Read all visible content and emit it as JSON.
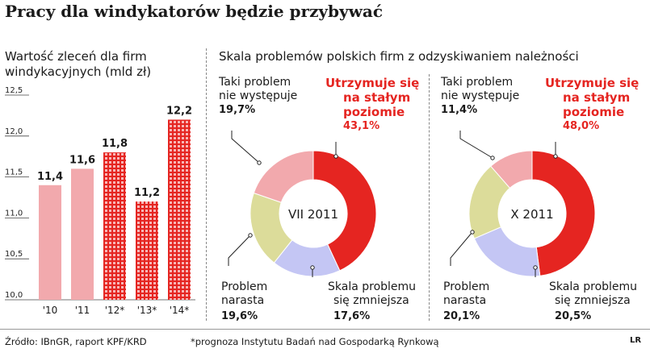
{
  "title": "Pracy dla windykatorów będzie przybywać",
  "bar_panel": {
    "subtitle_line1": "Wartość zleceń dla firm",
    "subtitle_line2": "windykacyjnych (mld zł)"
  },
  "pie_panel": {
    "subtitle": "Skala problemów polskich firm z odzyskiwaniem należności"
  },
  "labels": {
    "no_problem_1": "Taki problem",
    "no_problem_2": "nie występuje",
    "constant_1": "Utrzymuje się",
    "constant_2": "na stałym",
    "constant_3": "poziomie",
    "growing_1": "Problem",
    "growing_2": "narasta",
    "decreasing_1": "Skala problemu",
    "decreasing_2": "się zmniejsza"
  },
  "footer": {
    "source": "Źródło: IBnGR, raport KPF/KRD",
    "note": "*prognoza Instytutu Badań nad Gospodarką Rynkową",
    "logo": "LR"
  },
  "colors": {
    "red": "#e52521",
    "pink": "#f2a9ad",
    "olive": "#dcdc9a",
    "lavender": "#c4c6f4",
    "bar_pink": "#f2a9ad",
    "bar_red_hatched": "#e52521"
  },
  "chart_data": [
    {
      "type": "bar",
      "categories": [
        "'10",
        "'11",
        "'12*",
        "'13*",
        "'14*"
      ],
      "values": [
        11.4,
        11.6,
        11.8,
        11.2,
        12.2
      ],
      "value_labels": [
        "11,4",
        "11,6",
        "11,8",
        "11,2",
        "12,2"
      ],
      "forecast": [
        false,
        false,
        true,
        true,
        true
      ],
      "ylim": [
        10.0,
        12.5
      ],
      "yticks": [
        10.0,
        10.5,
        11.0,
        11.5,
        12.0,
        12.5
      ],
      "ytick_labels": [
        "10,0",
        "10,5",
        "11,0",
        "11,5",
        "12,0",
        "12,5"
      ],
      "grid": false
    },
    {
      "type": "pie",
      "center_label": "VII 2011",
      "slices": [
        {
          "name": "Utrzymuje się na stałym poziomie",
          "value": 43.1,
          "label": "43,1%",
          "color": "#e52521"
        },
        {
          "name": "Skala problemu się zmniejsza",
          "value": 17.6,
          "label": "17,6%",
          "color": "#c4c6f4"
        },
        {
          "name": "Problem narasta",
          "value": 19.6,
          "label": "19,6%",
          "color": "#dcdc9a"
        },
        {
          "name": "Taki problem nie występuje",
          "value": 19.7,
          "label": "19,7%",
          "color": "#f2a9ad"
        }
      ]
    },
    {
      "type": "pie",
      "center_label": "X 2011",
      "slices": [
        {
          "name": "Utrzymuje się na stałym poziomie",
          "value": 48.0,
          "label": "48,0%",
          "color": "#e52521"
        },
        {
          "name": "Skala problemu się zmniejsza",
          "value": 20.5,
          "label": "20,5%",
          "color": "#c4c6f4"
        },
        {
          "name": "Problem narasta",
          "value": 20.1,
          "label": "20,1%",
          "color": "#dcdc9a"
        },
        {
          "name": "Taki problem nie występuje",
          "value": 11.4,
          "label": "11,4%",
          "color": "#f2a9ad"
        }
      ]
    }
  ]
}
